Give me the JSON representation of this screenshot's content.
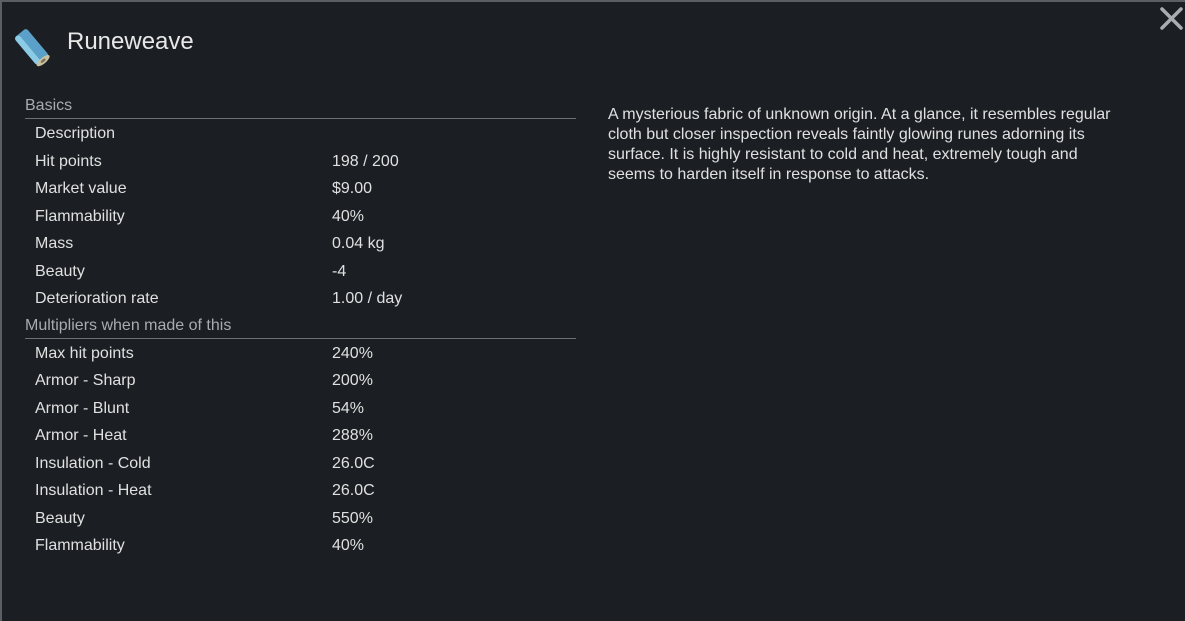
{
  "header": {
    "title": "Runeweave"
  },
  "sections": [
    {
      "title": "Basics",
      "rows": [
        [
          "Description"
        ],
        [
          "Hit points",
          "198 / 200"
        ],
        [
          "Market value",
          "$9.00"
        ],
        [
          "Flammability",
          "40%"
        ],
        [
          "Mass",
          "0.04 kg"
        ],
        [
          "Beauty",
          "-4"
        ],
        [
          "Deterioration rate",
          "1.00 / day"
        ]
      ]
    },
    {
      "title": "Multipliers when made of this",
      "rows": [
        [
          "Max hit points",
          "240%"
        ],
        [
          "Armor - Sharp",
          "200%"
        ],
        [
          "Armor - Blunt",
          "54%"
        ],
        [
          "Armor - Heat",
          "288%"
        ],
        [
          "Insulation - Cold",
          "26.0C"
        ],
        [
          "Insulation - Heat",
          "26.0C"
        ],
        [
          "Beauty",
          "550%"
        ],
        [
          "Flammability",
          "40%"
        ]
      ]
    }
  ],
  "description": "A mysterious fabric of unknown origin. At a glance, it resembles regular cloth but closer inspection reveals faintly glowing runes adorning its surface. It is highly resistant to cold and heat, extremely tough and seems to harden itself in response to attacks."
}
